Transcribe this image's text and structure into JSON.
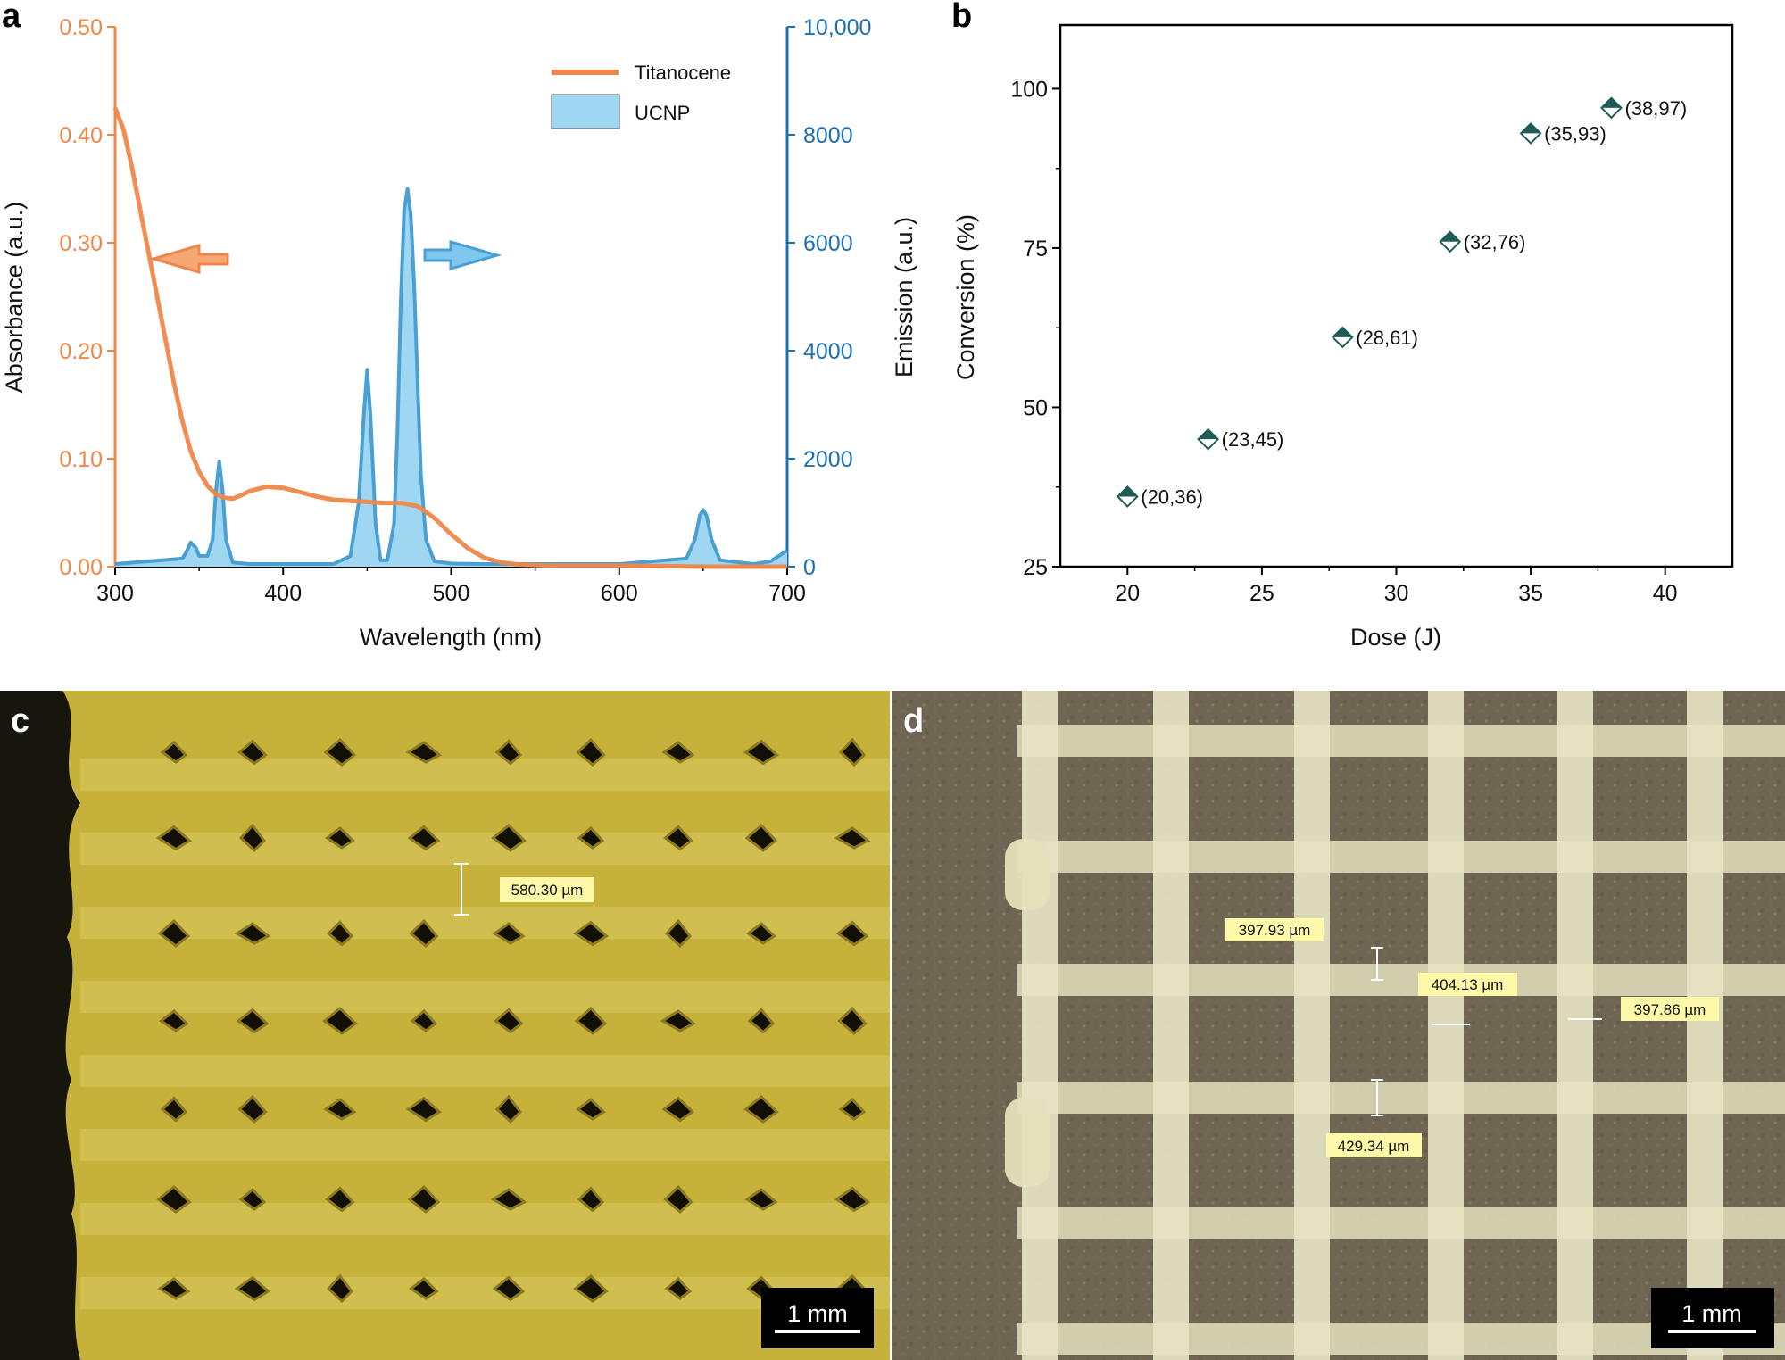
{
  "colors": {
    "orange": "#F0874A",
    "blue": "#1C6FB0",
    "blue_fill": "#9FD7F2",
    "blue_line": "#4A9FD3",
    "teal": "#1E5C57"
  },
  "panels": {
    "a_letter": "a",
    "b_letter": "b",
    "c_letter": "c",
    "d_letter": "d"
  },
  "chart_data": [
    {
      "panel": "a",
      "type": "line",
      "xlabel": "Wavelength (nm)",
      "ylabel_left": "Absorbance (a.u.)",
      "ylabel_right": "Emission (a.u.)",
      "xlim": [
        300,
        700
      ],
      "ylim_left": [
        0,
        0.5
      ],
      "ylim_right": [
        0,
        10000
      ],
      "x_ticks": [
        "300",
        "400",
        "500",
        "600",
        "700"
      ],
      "y_ticks_left": [
        "0.00",
        "0.10",
        "0.20",
        "0.30",
        "0.40",
        "0.50"
      ],
      "y_ticks_right": [
        "0",
        "2000",
        "4000",
        "6000",
        "8000",
        "10,000"
      ],
      "legend_position": "top-right",
      "series": [
        {
          "name": "Titanocene",
          "axis": "left",
          "color": "#F0874A",
          "x": [
            300,
            305,
            310,
            315,
            320,
            325,
            330,
            335,
            340,
            345,
            350,
            355,
            360,
            365,
            370,
            375,
            380,
            390,
            400,
            410,
            420,
            430,
            440,
            450,
            460,
            470,
            480,
            490,
            500,
            510,
            520,
            530,
            540,
            560,
            600,
            650,
            700
          ],
          "y": [
            0.425,
            0.405,
            0.37,
            0.33,
            0.29,
            0.25,
            0.21,
            0.17,
            0.135,
            0.107,
            0.088,
            0.075,
            0.067,
            0.064,
            0.063,
            0.066,
            0.07,
            0.074,
            0.073,
            0.069,
            0.065,
            0.062,
            0.061,
            0.06,
            0.059,
            0.059,
            0.056,
            0.045,
            0.03,
            0.017,
            0.008,
            0.004,
            0.002,
            0.001,
            0.001,
            0.0,
            0.0
          ]
        },
        {
          "name": "UCNP",
          "axis": "right",
          "color": "#4A9FD3",
          "fill": "#9FD7F2",
          "x": [
            300,
            340,
            342,
            345,
            348,
            350,
            355,
            358,
            360,
            362,
            364,
            366,
            370,
            380,
            400,
            430,
            440,
            445,
            448,
            450,
            452,
            455,
            458,
            462,
            466,
            468,
            470,
            472,
            474,
            476,
            478,
            480,
            482,
            485,
            490,
            500,
            520,
            600,
            640,
            645,
            648,
            650,
            652,
            655,
            660,
            680,
            690,
            700
          ],
          "y": [
            50,
            150,
            250,
            450,
            350,
            200,
            200,
            500,
            1400,
            1950,
            1400,
            500,
            80,
            50,
            50,
            50,
            200,
            1200,
            2800,
            3650,
            2800,
            800,
            120,
            120,
            800,
            2500,
            4900,
            6600,
            7000,
            6500,
            5200,
            3400,
            1700,
            500,
            100,
            60,
            50,
            50,
            150,
            500,
            950,
            1050,
            950,
            500,
            120,
            50,
            100,
            300
          ]
        }
      ]
    },
    {
      "panel": "b",
      "type": "scatter",
      "xlabel": "Dose (J)",
      "ylabel": "Conversion (%)",
      "xlim": [
        17.5,
        42.5
      ],
      "ylim": [
        25,
        110
      ],
      "x_ticks": [
        "20",
        "25",
        "30",
        "35",
        "40"
      ],
      "y_ticks": [
        "25",
        "50",
        "75",
        "100"
      ],
      "color": "#1E5C57",
      "x": [
        20,
        23,
        28,
        32,
        35,
        38
      ],
      "y": [
        36,
        45,
        61,
        76,
        93,
        97
      ],
      "point_labels": [
        "(20,36)",
        "(23,45)",
        "(28,61)",
        "(32,76)",
        "(35,93)",
        "(38,97)"
      ]
    }
  ],
  "micrographs": {
    "c": {
      "measurements": [
        "580.30 µm"
      ],
      "scale_bar": "1 mm"
    },
    "d": {
      "measurements": [
        "397.93 µm",
        "404.13 µm",
        "397.86 µm",
        "429.34 µm"
      ],
      "scale_bar": "1 mm"
    }
  }
}
